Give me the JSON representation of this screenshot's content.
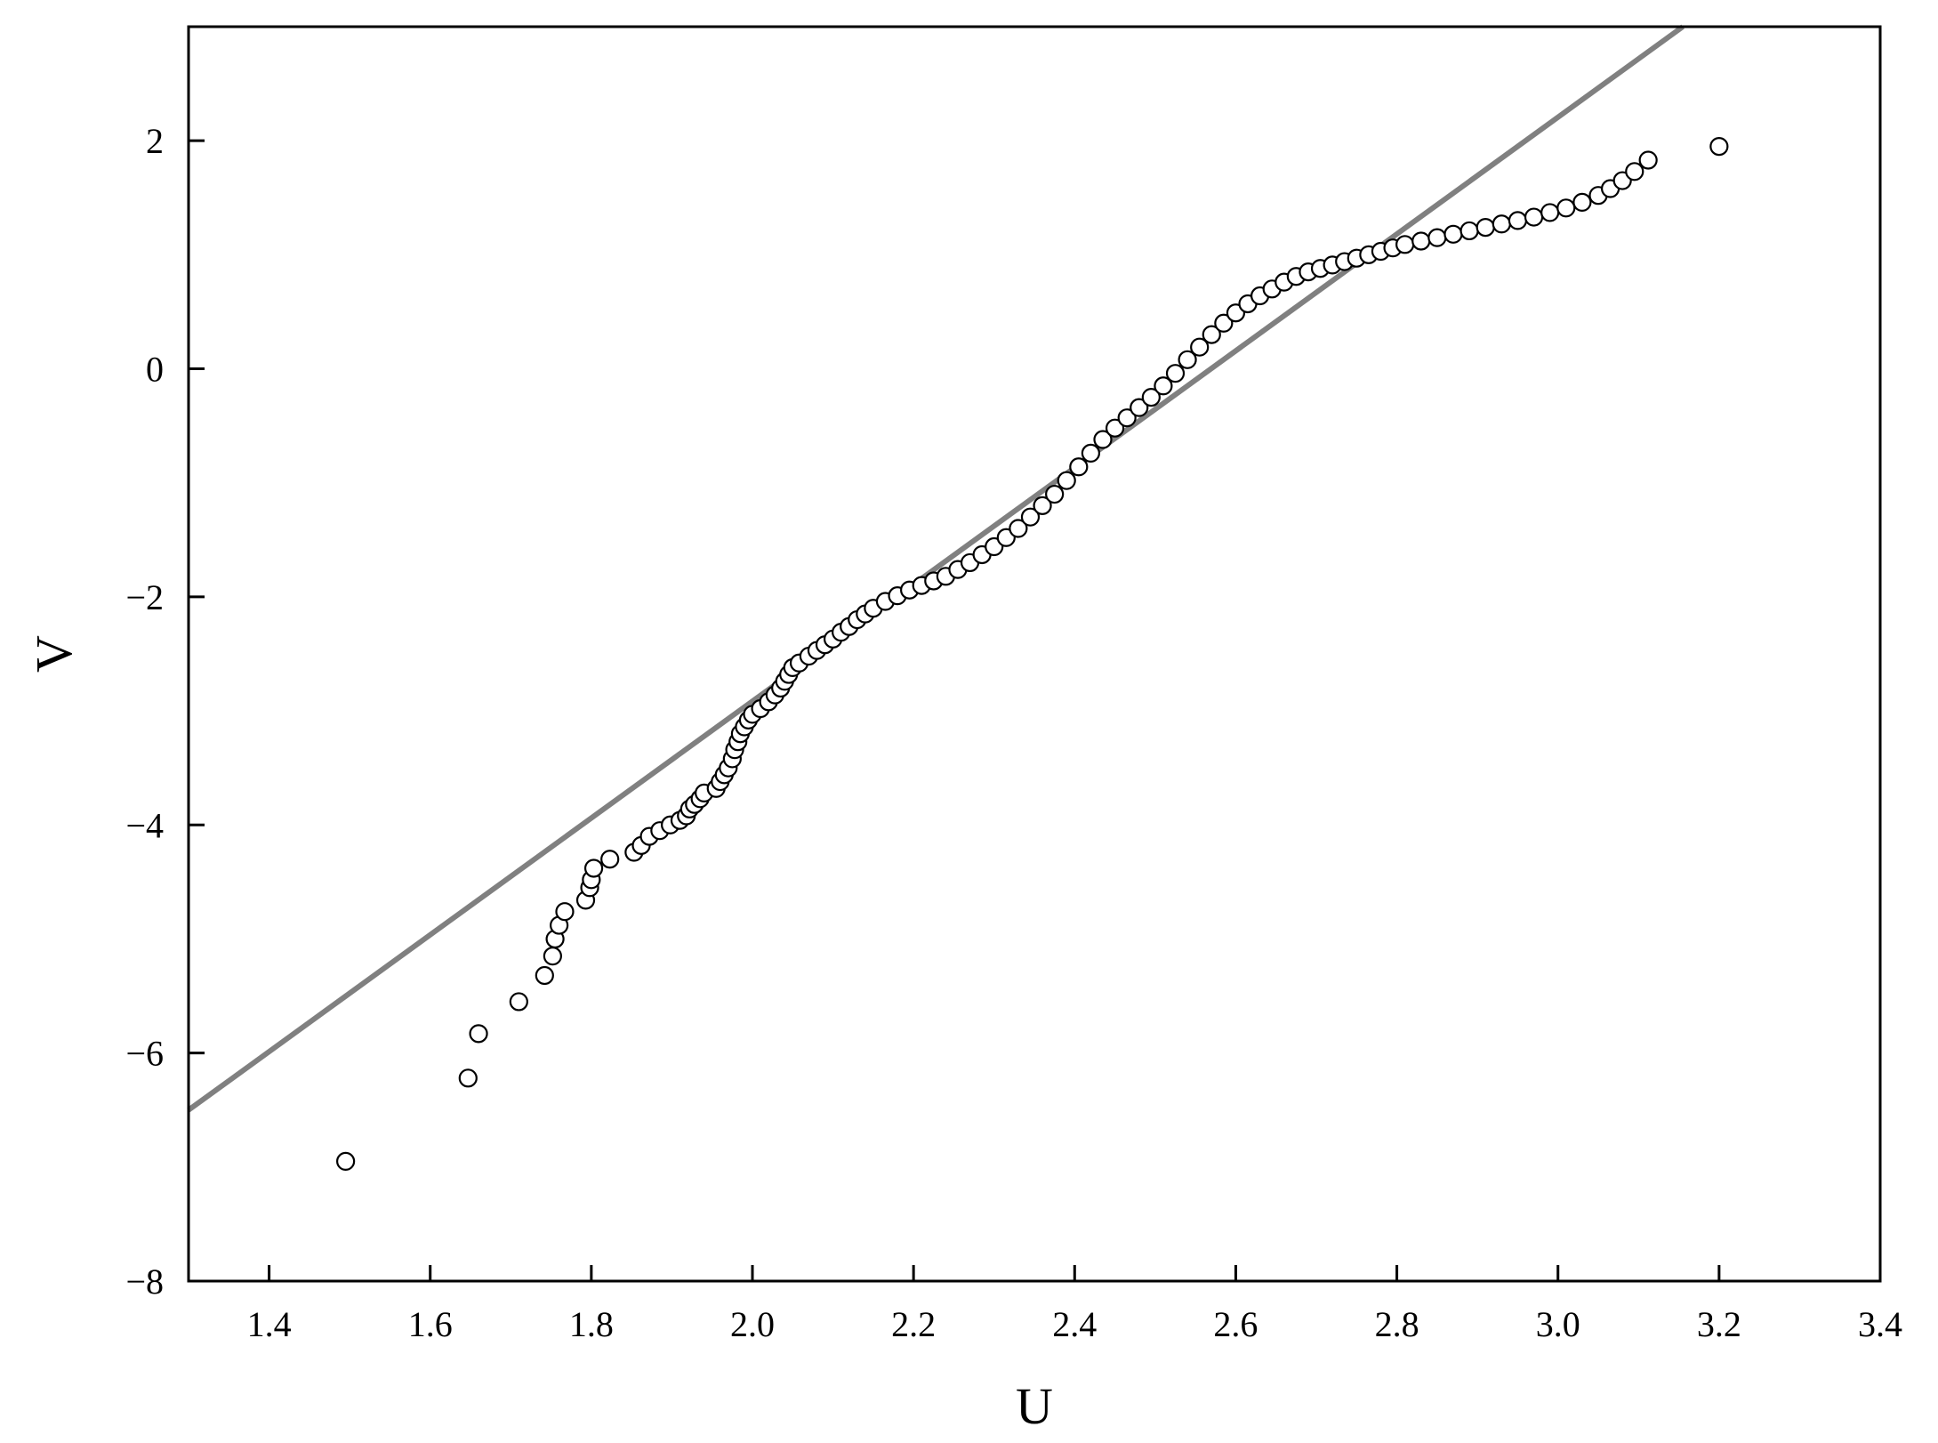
{
  "chart_data": {
    "type": "scatter",
    "title": "",
    "xlabel": "U",
    "ylabel": "V",
    "xlim": [
      1.3,
      3.4
    ],
    "ylim": [
      -8,
      3
    ],
    "xticks": [
      1.4,
      1.6,
      1.8,
      2.0,
      2.2,
      2.4,
      2.6,
      2.8,
      3.0,
      3.2,
      3.4
    ],
    "xtick_labels": [
      "1.4",
      "1.6",
      "1.8",
      "2.0",
      "2.2",
      "2.4",
      "2.6",
      "2.8",
      "3.0",
      "3.2",
      "3.4"
    ],
    "yticks": [
      -8,
      -6,
      -4,
      -2,
      0,
      2
    ],
    "ytick_labels": [
      "−8",
      "−6",
      "−4",
      "−2",
      "0",
      "2"
    ],
    "grid": false,
    "legend": false,
    "colors": {
      "points": "#000000",
      "fit_line": "#808080",
      "axes": "#000000"
    },
    "fit_line": {
      "x": [
        1.3,
        3.155
      ],
      "y": [
        -6.5,
        3.0
      ]
    },
    "points": [
      [
        1.495,
        -6.95
      ],
      [
        1.647,
        -6.22
      ],
      [
        1.66,
        -5.83
      ],
      [
        1.71,
        -5.55
      ],
      [
        1.742,
        -5.32
      ],
      [
        1.752,
        -5.15
      ],
      [
        1.755,
        -5.0
      ],
      [
        1.76,
        -4.88
      ],
      [
        1.767,
        -4.76
      ],
      [
        1.793,
        -4.66
      ],
      [
        1.798,
        -4.55
      ],
      [
        1.8,
        -4.48
      ],
      [
        1.803,
        -4.38
      ],
      [
        1.823,
        -4.3
      ],
      [
        1.853,
        -4.24
      ],
      [
        1.862,
        -4.18
      ],
      [
        1.872,
        -4.1
      ],
      [
        1.885,
        -4.05
      ],
      [
        1.898,
        -4.0
      ],
      [
        1.91,
        -3.96
      ],
      [
        1.918,
        -3.92
      ],
      [
        1.922,
        -3.86
      ],
      [
        1.928,
        -3.82
      ],
      [
        1.935,
        -3.77
      ],
      [
        1.94,
        -3.72
      ],
      [
        1.955,
        -3.68
      ],
      [
        1.96,
        -3.62
      ],
      [
        1.965,
        -3.56
      ],
      [
        1.97,
        -3.5
      ],
      [
        1.975,
        -3.42
      ],
      [
        1.978,
        -3.34
      ],
      [
        1.982,
        -3.27
      ],
      [
        1.985,
        -3.2
      ],
      [
        1.99,
        -3.14
      ],
      [
        1.995,
        -3.08
      ],
      [
        2.0,
        -3.03
      ],
      [
        2.01,
        -2.98
      ],
      [
        2.02,
        -2.92
      ],
      [
        2.028,
        -2.86
      ],
      [
        2.035,
        -2.8
      ],
      [
        2.04,
        -2.74
      ],
      [
        2.045,
        -2.68
      ],
      [
        2.05,
        -2.62
      ],
      [
        2.058,
        -2.58
      ],
      [
        2.07,
        -2.52
      ],
      [
        2.08,
        -2.47
      ],
      [
        2.09,
        -2.42
      ],
      [
        2.1,
        -2.37
      ],
      [
        2.11,
        -2.31
      ],
      [
        2.12,
        -2.26
      ],
      [
        2.13,
        -2.2
      ],
      [
        2.14,
        -2.15
      ],
      [
        2.15,
        -2.1
      ],
      [
        2.165,
        -2.04
      ],
      [
        2.18,
        -1.99
      ],
      [
        2.195,
        -1.94
      ],
      [
        2.21,
        -1.9
      ],
      [
        2.225,
        -1.86
      ],
      [
        2.24,
        -1.82
      ],
      [
        2.255,
        -1.76
      ],
      [
        2.27,
        -1.7
      ],
      [
        2.285,
        -1.63
      ],
      [
        2.3,
        -1.56
      ],
      [
        2.315,
        -1.48
      ],
      [
        2.33,
        -1.4
      ],
      [
        2.345,
        -1.3
      ],
      [
        2.36,
        -1.2
      ],
      [
        2.375,
        -1.1
      ],
      [
        2.39,
        -0.98
      ],
      [
        2.405,
        -0.86
      ],
      [
        2.42,
        -0.74
      ],
      [
        2.435,
        -0.62
      ],
      [
        2.45,
        -0.52
      ],
      [
        2.465,
        -0.43
      ],
      [
        2.48,
        -0.34
      ],
      [
        2.495,
        -0.25
      ],
      [
        2.51,
        -0.15
      ],
      [
        2.525,
        -0.04
      ],
      [
        2.54,
        0.08
      ],
      [
        2.555,
        0.19
      ],
      [
        2.57,
        0.3
      ],
      [
        2.585,
        0.4
      ],
      [
        2.6,
        0.49
      ],
      [
        2.615,
        0.57
      ],
      [
        2.63,
        0.64
      ],
      [
        2.645,
        0.7
      ],
      [
        2.66,
        0.76
      ],
      [
        2.675,
        0.81
      ],
      [
        2.69,
        0.85
      ],
      [
        2.705,
        0.88
      ],
      [
        2.72,
        0.91
      ],
      [
        2.735,
        0.94
      ],
      [
        2.75,
        0.97
      ],
      [
        2.765,
        1.0
      ],
      [
        2.78,
        1.03
      ],
      [
        2.795,
        1.06
      ],
      [
        2.81,
        1.09
      ],
      [
        2.83,
        1.12
      ],
      [
        2.85,
        1.15
      ],
      [
        2.87,
        1.18
      ],
      [
        2.89,
        1.21
      ],
      [
        2.91,
        1.24
      ],
      [
        2.93,
        1.27
      ],
      [
        2.95,
        1.3
      ],
      [
        2.97,
        1.33
      ],
      [
        2.99,
        1.37
      ],
      [
        3.01,
        1.41
      ],
      [
        3.03,
        1.46
      ],
      [
        3.05,
        1.52
      ],
      [
        3.065,
        1.58
      ],
      [
        3.08,
        1.65
      ],
      [
        3.095,
        1.73
      ],
      [
        3.112,
        1.83
      ],
      [
        3.2,
        1.95
      ]
    ]
  }
}
